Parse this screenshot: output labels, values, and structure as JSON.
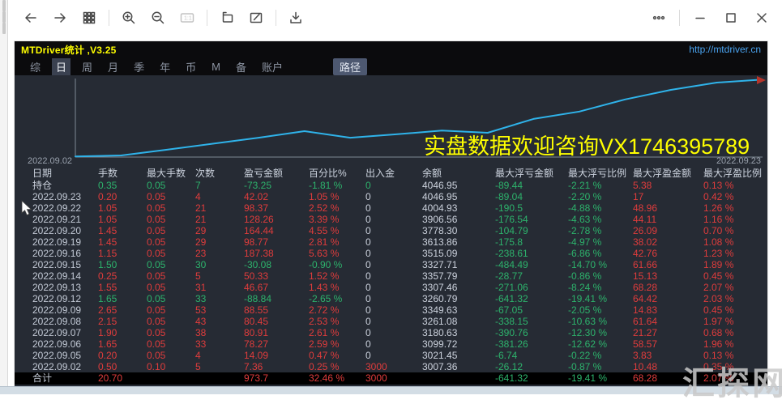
{
  "toolbar": {
    "one_to_one_label": "1:1",
    "icons": [
      "back-icon",
      "forward-icon",
      "grid-icon",
      "zoom-in-icon",
      "zoom-out-icon",
      "one-to-one-icon",
      "new-window-icon",
      "edit-icon",
      "download-icon",
      "more-icon",
      "minimize-icon",
      "maximize-icon",
      "close-icon"
    ]
  },
  "titlebar": {
    "title": "MTDriver统计 ,V3.25",
    "url": "http://mtdriver.cn"
  },
  "tabbar": {
    "tabs": [
      {
        "label": "综",
        "active": false
      },
      {
        "label": "日",
        "active": true
      },
      {
        "label": "周",
        "active": false
      },
      {
        "label": "月",
        "active": false
      },
      {
        "label": "季",
        "active": false
      },
      {
        "label": "年",
        "active": false
      },
      {
        "label": "币",
        "active": false
      },
      {
        "label": "M",
        "active": false
      },
      {
        "label": "备",
        "active": false
      },
      {
        "label": "账户",
        "active": false
      }
    ],
    "path_button": "路径"
  },
  "chart_data": {
    "type": "line",
    "title": "",
    "xlabel": "",
    "ylabel": "",
    "x": [
      "2022.09.02",
      "2022.09.05",
      "2022.09.06",
      "2022.09.07",
      "2022.09.08",
      "2022.09.09",
      "2022.09.12",
      "2022.09.13",
      "2022.09.14",
      "2022.09.15",
      "2022.09.16",
      "2022.09.19",
      "2022.09.20",
      "2022.09.21",
      "2022.09.22",
      "2022.09.23"
    ],
    "series": [
      {
        "name": "余额",
        "values": [
          3007.36,
          3021.45,
          3099.72,
          3180.63,
          3261.08,
          3349.63,
          3260.79,
          3307.46,
          3357.79,
          3327.71,
          3515.09,
          3613.86,
          3778.3,
          3906.56,
          4004.93,
          4046.95
        ]
      }
    ],
    "ylim": [
      3000,
      4060
    ],
    "grid": false,
    "legend": "none",
    "line_color": "#2fb3ea",
    "start_label": "2022.09.02",
    "end_label": "2022.09.23",
    "annotation": "实盘数据欢迎咨询VX1746395789"
  },
  "table": {
    "headers": [
      "日期",
      "手数",
      "最大手数",
      "次数",
      "盈亏金额",
      "百分比%",
      "出入金",
      "余额",
      "最大浮亏金额",
      "最大浮亏比例",
      "最大浮盈金额",
      "最大浮盈比例"
    ],
    "rows": [
      {
        "total": false,
        "cells": [
          [
            "持仓",
            "w"
          ],
          [
            "0.35",
            "g"
          ],
          [
            "0.05",
            "g"
          ],
          [
            "7",
            "g"
          ],
          [
            "-73.25",
            "g"
          ],
          [
            "-1.81 %",
            "g"
          ],
          [
            "0",
            "g"
          ],
          [
            "4046.95",
            "w"
          ],
          [
            "-89.44",
            "g"
          ],
          [
            "-2.21 %",
            "g"
          ],
          [
            "5.38",
            "r"
          ],
          [
            "0.13 %",
            "r"
          ]
        ]
      },
      {
        "total": false,
        "cells": [
          [
            "2022.09.23",
            "d"
          ],
          [
            "0.20",
            "r"
          ],
          [
            "0.05",
            "r"
          ],
          [
            "4",
            "r"
          ],
          [
            "42.02",
            "r"
          ],
          [
            "1.05 %",
            "r"
          ],
          [
            "0",
            "w"
          ],
          [
            "4046.95",
            "w"
          ],
          [
            "-89.04",
            "g"
          ],
          [
            "-2.20 %",
            "g"
          ],
          [
            "17",
            "r"
          ],
          [
            "0.42 %",
            "r"
          ]
        ]
      },
      {
        "total": false,
        "cells": [
          [
            "2022.09.22",
            "d"
          ],
          [
            "1.05",
            "r"
          ],
          [
            "0.05",
            "r"
          ],
          [
            "21",
            "r"
          ],
          [
            "98.37",
            "r"
          ],
          [
            "2.52 %",
            "r"
          ],
          [
            "0",
            "w"
          ],
          [
            "4004.93",
            "w"
          ],
          [
            "-190.5",
            "g"
          ],
          [
            "-4.88 %",
            "g"
          ],
          [
            "48.96",
            "r"
          ],
          [
            "1.26 %",
            "r"
          ]
        ]
      },
      {
        "total": false,
        "cells": [
          [
            "2022.09.21",
            "d"
          ],
          [
            "1.05",
            "r"
          ],
          [
            "0.05",
            "r"
          ],
          [
            "21",
            "r"
          ],
          [
            "128.26",
            "r"
          ],
          [
            "3.39 %",
            "r"
          ],
          [
            "0",
            "w"
          ],
          [
            "3906.56",
            "w"
          ],
          [
            "-176.54",
            "g"
          ],
          [
            "-4.63 %",
            "g"
          ],
          [
            "44.11",
            "r"
          ],
          [
            "1.16 %",
            "r"
          ]
        ]
      },
      {
        "total": false,
        "cells": [
          [
            "2022.09.20",
            "d"
          ],
          [
            "1.45",
            "r"
          ],
          [
            "0.05",
            "r"
          ],
          [
            "29",
            "r"
          ],
          [
            "164.44",
            "r"
          ],
          [
            "4.55 %",
            "r"
          ],
          [
            "0",
            "w"
          ],
          [
            "3778.30",
            "w"
          ],
          [
            "-104.79",
            "g"
          ],
          [
            "-2.78 %",
            "g"
          ],
          [
            "26.09",
            "r"
          ],
          [
            "0.70 %",
            "r"
          ]
        ]
      },
      {
        "total": false,
        "cells": [
          [
            "2022.09.19",
            "d"
          ],
          [
            "1.45",
            "r"
          ],
          [
            "0.05",
            "r"
          ],
          [
            "29",
            "r"
          ],
          [
            "98.77",
            "r"
          ],
          [
            "2.81 %",
            "r"
          ],
          [
            "0",
            "w"
          ],
          [
            "3613.86",
            "w"
          ],
          [
            "-175.8",
            "g"
          ],
          [
            "-4.97 %",
            "g"
          ],
          [
            "38.02",
            "r"
          ],
          [
            "1.08 %",
            "r"
          ]
        ]
      },
      {
        "total": false,
        "cells": [
          [
            "2022.09.16",
            "d"
          ],
          [
            "1.15",
            "r"
          ],
          [
            "0.05",
            "r"
          ],
          [
            "23",
            "r"
          ],
          [
            "187.38",
            "r"
          ],
          [
            "5.63 %",
            "r"
          ],
          [
            "0",
            "w"
          ],
          [
            "3515.09",
            "w"
          ],
          [
            "-238.61",
            "g"
          ],
          [
            "-6.86 %",
            "g"
          ],
          [
            "42.76",
            "r"
          ],
          [
            "1.23 %",
            "r"
          ]
        ]
      },
      {
        "total": false,
        "cells": [
          [
            "2022.09.15",
            "d"
          ],
          [
            "1.50",
            "g"
          ],
          [
            "0.05",
            "g"
          ],
          [
            "30",
            "g"
          ],
          [
            "-30.08",
            "g"
          ],
          [
            "-0.90 %",
            "g"
          ],
          [
            "0",
            "w"
          ],
          [
            "3327.71",
            "w"
          ],
          [
            "-484.49",
            "g"
          ],
          [
            "-14.70 %",
            "g"
          ],
          [
            "61.66",
            "r"
          ],
          [
            "1.89 %",
            "r"
          ]
        ]
      },
      {
        "total": false,
        "cells": [
          [
            "2022.09.14",
            "d"
          ],
          [
            "0.25",
            "r"
          ],
          [
            "0.05",
            "r"
          ],
          [
            "5",
            "r"
          ],
          [
            "50.33",
            "r"
          ],
          [
            "1.52 %",
            "r"
          ],
          [
            "0",
            "w"
          ],
          [
            "3357.79",
            "w"
          ],
          [
            "-28.77",
            "g"
          ],
          [
            "-0.86 %",
            "g"
          ],
          [
            "15.13",
            "r"
          ],
          [
            "0.45 %",
            "r"
          ]
        ]
      },
      {
        "total": false,
        "cells": [
          [
            "2022.09.13",
            "d"
          ],
          [
            "1.55",
            "r"
          ],
          [
            "0.05",
            "r"
          ],
          [
            "31",
            "r"
          ],
          [
            "46.67",
            "r"
          ],
          [
            "1.43 %",
            "r"
          ],
          [
            "0",
            "w"
          ],
          [
            "3307.46",
            "w"
          ],
          [
            "-271.06",
            "g"
          ],
          [
            "-8.24 %",
            "g"
          ],
          [
            "68.28",
            "r"
          ],
          [
            "2.07 %",
            "r"
          ]
        ]
      },
      {
        "total": false,
        "cells": [
          [
            "2022.09.12",
            "d"
          ],
          [
            "1.65",
            "g"
          ],
          [
            "0.05",
            "g"
          ],
          [
            "33",
            "g"
          ],
          [
            "-88.84",
            "g"
          ],
          [
            "-2.65 %",
            "g"
          ],
          [
            "0",
            "w"
          ],
          [
            "3260.79",
            "w"
          ],
          [
            "-641.32",
            "g"
          ],
          [
            "-19.41 %",
            "g"
          ],
          [
            "64.42",
            "r"
          ],
          [
            "2.03 %",
            "r"
          ]
        ]
      },
      {
        "total": false,
        "cells": [
          [
            "2022.09.09",
            "d"
          ],
          [
            "2.65",
            "r"
          ],
          [
            "0.05",
            "r"
          ],
          [
            "53",
            "r"
          ],
          [
            "88.55",
            "r"
          ],
          [
            "2.72 %",
            "r"
          ],
          [
            "0",
            "w"
          ],
          [
            "3349.63",
            "w"
          ],
          [
            "-67.05",
            "g"
          ],
          [
            "-2.05 %",
            "g"
          ],
          [
            "14.83",
            "r"
          ],
          [
            "0.45 %",
            "r"
          ]
        ]
      },
      {
        "total": false,
        "cells": [
          [
            "2022.09.08",
            "d"
          ],
          [
            "2.15",
            "r"
          ],
          [
            "0.05",
            "r"
          ],
          [
            "43",
            "r"
          ],
          [
            "80.45",
            "r"
          ],
          [
            "2.53 %",
            "r"
          ],
          [
            "0",
            "w"
          ],
          [
            "3261.08",
            "w"
          ],
          [
            "-338.15",
            "g"
          ],
          [
            "-10.63 %",
            "g"
          ],
          [
            "61.64",
            "r"
          ],
          [
            "1.97 %",
            "r"
          ]
        ]
      },
      {
        "total": false,
        "cells": [
          [
            "2022.09.07",
            "d"
          ],
          [
            "1.90",
            "r"
          ],
          [
            "0.05",
            "r"
          ],
          [
            "38",
            "r"
          ],
          [
            "80.91",
            "r"
          ],
          [
            "2.61 %",
            "r"
          ],
          [
            "0",
            "w"
          ],
          [
            "3180.63",
            "w"
          ],
          [
            "-390.76",
            "g"
          ],
          [
            "-12.30 %",
            "g"
          ],
          [
            "21.27",
            "r"
          ],
          [
            "0.68 %",
            "r"
          ]
        ]
      },
      {
        "total": false,
        "cells": [
          [
            "2022.09.06",
            "d"
          ],
          [
            "1.65",
            "r"
          ],
          [
            "0.05",
            "r"
          ],
          [
            "33",
            "r"
          ],
          [
            "78.27",
            "r"
          ],
          [
            "2.59 %",
            "r"
          ],
          [
            "0",
            "w"
          ],
          [
            "3099.72",
            "w"
          ],
          [
            "-381.26",
            "g"
          ],
          [
            "-12.62 %",
            "g"
          ],
          [
            "58.57",
            "r"
          ],
          [
            "1.96 %",
            "r"
          ]
        ]
      },
      {
        "total": false,
        "cells": [
          [
            "2022.09.05",
            "d"
          ],
          [
            "0.20",
            "r"
          ],
          [
            "0.05",
            "r"
          ],
          [
            "4",
            "r"
          ],
          [
            "14.09",
            "r"
          ],
          [
            "0.47 %",
            "r"
          ],
          [
            "0",
            "w"
          ],
          [
            "3021.45",
            "w"
          ],
          [
            "-6.74",
            "g"
          ],
          [
            "-0.22 %",
            "g"
          ],
          [
            "3.83",
            "r"
          ],
          [
            "0.13 %",
            "r"
          ]
        ]
      },
      {
        "total": false,
        "cells": [
          [
            "2022.09.02",
            "d"
          ],
          [
            "0.50",
            "r"
          ],
          [
            "0.10",
            "r"
          ],
          [
            "5",
            "r"
          ],
          [
            "7.36",
            "r"
          ],
          [
            "0.25 %",
            "r"
          ],
          [
            "3000",
            "r"
          ],
          [
            "3007.36",
            "w"
          ],
          [
            "-26.12",
            "g"
          ],
          [
            "-0.87 %",
            "g"
          ],
          [
            "10.48",
            "r"
          ],
          [
            "0.35 %",
            "r"
          ]
        ]
      },
      {
        "total": true,
        "cells": [
          [
            "合计",
            "d"
          ],
          [
            "20.70",
            "r"
          ],
          [
            "",
            ""
          ],
          [
            "",
            ""
          ],
          [
            "973.7",
            "r"
          ],
          [
            "32.46 %",
            "r"
          ],
          [
            "3000",
            "r"
          ],
          [
            "",
            ""
          ],
          [
            "-641.32",
            "g"
          ],
          [
            "-19.41 %",
            "g"
          ],
          [
            "68.28",
            "r"
          ],
          [
            "2.07 %",
            "r"
          ]
        ]
      }
    ]
  },
  "watermark": {
    "text": "汇探网"
  },
  "colors": {
    "accent_line": "#2fb3ea",
    "profit_red": "#e03c3c",
    "loss_green": "#2db36c",
    "title_yellow": "#ffff00",
    "url_blue": "#4aa3f0",
    "panel_bg": "#262b34",
    "bar_bg": "#0b0b0d",
    "total_row_bg": "#000000",
    "scroll_arrow_red": "#b5342a"
  }
}
